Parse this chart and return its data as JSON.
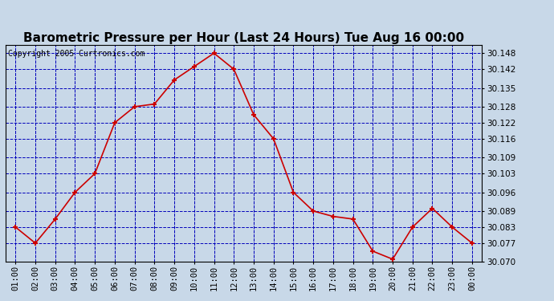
{
  "title": "Barometric Pressure per Hour (Last 24 Hours) Tue Aug 16 00:00",
  "copyright": "Copyright 2005 Curtronics.com",
  "hours": [
    "01:00",
    "02:00",
    "03:00",
    "04:00",
    "05:00",
    "06:00",
    "07:00",
    "08:00",
    "09:00",
    "10:00",
    "11:00",
    "12:00",
    "13:00",
    "14:00",
    "15:00",
    "16:00",
    "17:00",
    "18:00",
    "19:00",
    "20:00",
    "21:00",
    "22:00",
    "23:00",
    "00:00"
  ],
  "values": [
    30.083,
    30.077,
    30.086,
    30.096,
    30.103,
    30.122,
    30.128,
    30.129,
    30.138,
    30.143,
    30.148,
    30.142,
    30.125,
    30.116,
    30.096,
    30.089,
    30.087,
    30.086,
    30.074,
    30.071,
    30.083,
    30.09,
    30.083,
    30.077
  ],
  "ylim_min": 30.07,
  "ylim_max": 30.151,
  "yticks": [
    30.07,
    30.077,
    30.083,
    30.089,
    30.096,
    30.103,
    30.109,
    30.116,
    30.122,
    30.128,
    30.135,
    30.142,
    30.148
  ],
  "line_color": "#cc0000",
  "marker_color": "#cc0000",
  "bg_color": "#c8d8e8",
  "grid_color": "#0000bb",
  "title_fontsize": 11,
  "copyright_fontsize": 7,
  "tick_fontsize": 7.5
}
